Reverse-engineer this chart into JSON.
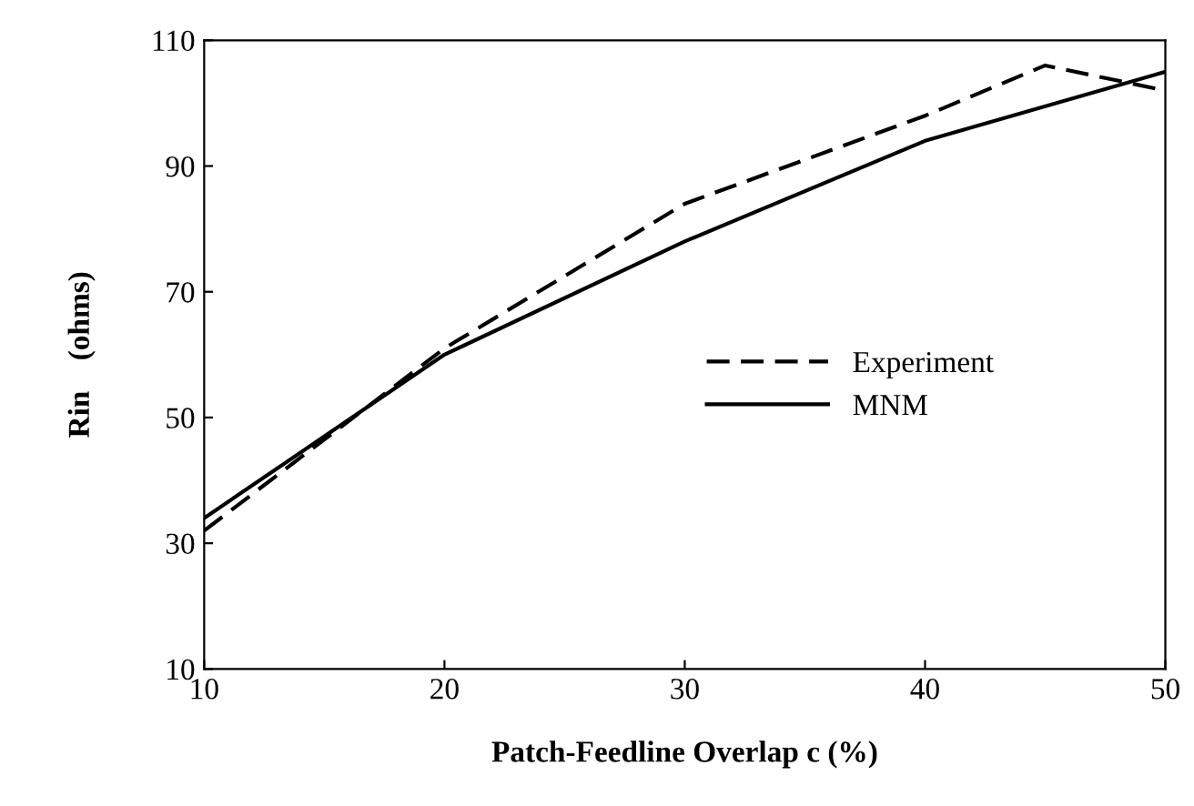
{
  "chart_data": {
    "type": "line",
    "xlabel": "Patch-Feedline Overlap c (%)",
    "ylabel": "Rin    (ohms)",
    "xlim": [
      10,
      50
    ],
    "ylim": [
      10,
      110
    ],
    "xticks": [
      10,
      20,
      30,
      40,
      50
    ],
    "yticks": [
      10,
      30,
      50,
      70,
      90,
      110
    ],
    "legend": "right",
    "grid": false,
    "marker": "none",
    "series": [
      {
        "name": "Experiment",
        "color": "#000000",
        "line_style": "dashed",
        "x": [
          10,
          20,
          30,
          40,
          45,
          50
        ],
        "values": [
          32,
          61,
          84,
          98,
          106,
          102
        ]
      },
      {
        "name": "MNM",
        "color": "#000000",
        "line_style": "solid",
        "x": [
          10,
          20,
          30,
          40,
          50
        ],
        "values": [
          34,
          60,
          78,
          94,
          105
        ]
      }
    ]
  }
}
